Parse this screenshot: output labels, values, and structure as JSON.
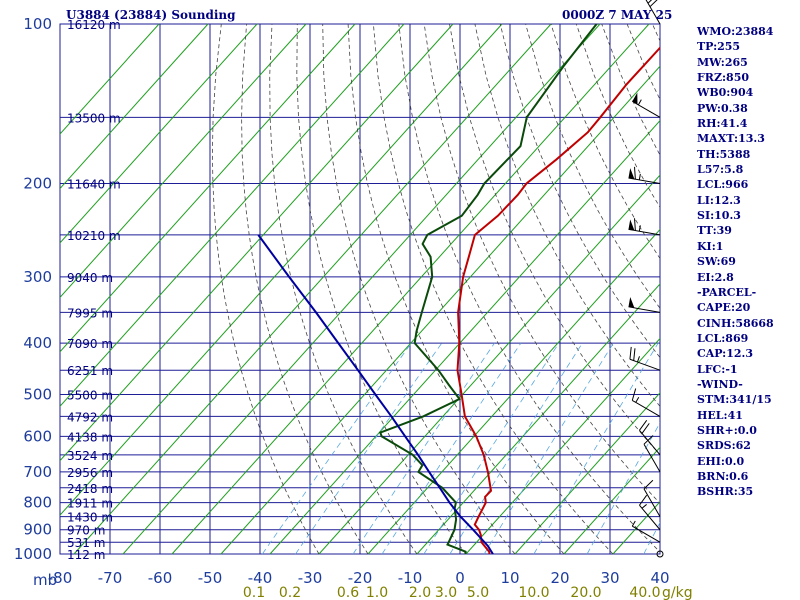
{
  "header": {
    "station": "U3884 (23884) Sounding",
    "time": "0000Z  7 MAY 25"
  },
  "indices": [
    "WMO:23884",
    "TP:255",
    "MW:265",
    "FRZ:850",
    "WB0:904",
    "PW:0.38",
    "RH:41.4",
    "MAXT:13.3",
    "TH:5388",
    "L57:5.8",
    "LCL:966",
    "LI:12.3",
    "SI:10.3",
    "TT:39",
    "KI:1",
    "SW:69",
    "EI:2.8",
    "-PARCEL-",
    "CAPE:20",
    "CINH:58668",
    "LCL:869",
    "CAP:12.3",
    "LFC:-1",
    "-WIND-",
    "STM:341/15",
    "HEL:41",
    "SHR+:0.0",
    "SRDS:62",
    "EHI:0.0",
    "BRN:0.6",
    "BSHR:35"
  ],
  "chart_data": {
    "type": "line",
    "title": "U3884 (23884) Sounding",
    "subtitle": "0000Z  7 MAY 25",
    "y_scale": "log-pressure",
    "ylim": [
      1000,
      100
    ],
    "xlim": [
      -80,
      40
    ],
    "y_unit_label": "mb",
    "pressure_ticks": [
      "100",
      "200",
      "300",
      "400",
      "500",
      "600",
      "700",
      "800",
      "900",
      "1000"
    ],
    "temperature_ticks": [
      "-80",
      "-70",
      "-60",
      "-50",
      "-40",
      "-30",
      "-20",
      "-10",
      "0",
      "10",
      "20",
      "30",
      "40"
    ],
    "mixing_ratio_ticks": [
      "0.1",
      "0.2",
      "0.6",
      "1.0",
      "2.0",
      "3.0",
      "5.0",
      "10.0",
      "20.0",
      "40.0"
    ],
    "mixing_ratio_unit": "g/kg",
    "height_labels": [
      {
        "p": 100,
        "label": "16120 m"
      },
      {
        "p": 150,
        "label": "13500 m"
      },
      {
        "p": 200,
        "label": "11640 m"
      },
      {
        "p": 250,
        "label": "10210 m"
      },
      {
        "p": 300,
        "label": "9040 m"
      },
      {
        "p": 350,
        "label": "7995 m"
      },
      {
        "p": 400,
        "label": "7090 m"
      },
      {
        "p": 450,
        "label": "6251 m"
      },
      {
        "p": 500,
        "label": "5500 m"
      },
      {
        "p": 550,
        "label": "4792 m"
      },
      {
        "p": 600,
        "label": "4138 m"
      },
      {
        "p": 650,
        "label": "3524 m"
      },
      {
        "p": 700,
        "label": "2956 m"
      },
      {
        "p": 750,
        "label": "2418 m"
      },
      {
        "p": 800,
        "label": "1911 m"
      },
      {
        "p": 850,
        "label": "1430 m"
      },
      {
        "p": 900,
        "label": "970 m"
      },
      {
        "p": 950,
        "label": "531 m"
      },
      {
        "p": 1000,
        "label": "112 m"
      }
    ],
    "series": [
      {
        "color": "#c00000",
        "points": [
          [
            1000,
            4.8
          ],
          [
            990,
            4.3
          ],
          [
            950,
            1.0
          ],
          [
            920,
            -0.5
          ],
          [
            900,
            -1.8
          ],
          [
            880,
            -3.6
          ],
          [
            850,
            -4.3
          ],
          [
            800,
            -5.4
          ],
          [
            780,
            -6.6
          ],
          [
            760,
            -6.5
          ],
          [
            700,
            -10.6
          ],
          [
            650,
            -14.6
          ],
          [
            600,
            -19.5
          ],
          [
            550,
            -25.5
          ],
          [
            500,
            -30.2
          ],
          [
            450,
            -35.5
          ],
          [
            400,
            -40.1
          ],
          [
            350,
            -46.0
          ],
          [
            300,
            -51.5
          ],
          [
            275,
            -54.0
          ],
          [
            250,
            -56.8
          ],
          [
            230,
            -55.6
          ],
          [
            210,
            -55.4
          ],
          [
            200,
            -55.7
          ],
          [
            180,
            -54.0
          ],
          [
            160,
            -52.6
          ],
          [
            150,
            -52.8
          ],
          [
            130,
            -53.5
          ],
          [
            100,
            -53.3
          ]
        ]
      },
      {
        "color": "#0a4a0a",
        "points": [
          [
            1000,
            -0.1
          ],
          [
            990,
            -0.5
          ],
          [
            960,
            -5.5
          ],
          [
            950,
            -5.7
          ],
          [
            900,
            -6.8
          ],
          [
            860,
            -8.4
          ],
          [
            820,
            -10.7
          ],
          [
            800,
            -11.5
          ],
          [
            750,
            -17.0
          ],
          [
            700,
            -24.8
          ],
          [
            680,
            -25.2
          ],
          [
            650,
            -29.1
          ],
          [
            600,
            -38.8
          ],
          [
            590,
            -39.8
          ],
          [
            550,
            -34.0
          ],
          [
            510,
            -29.8
          ],
          [
            480,
            -34.5
          ],
          [
            450,
            -39.4
          ],
          [
            400,
            -49.2
          ],
          [
            380,
            -51.0
          ],
          [
            350,
            -53.4
          ],
          [
            300,
            -57.8
          ],
          [
            275,
            -61.8
          ],
          [
            260,
            -65.8
          ],
          [
            250,
            -66.5
          ],
          [
            230,
            -63.0
          ],
          [
            210,
            -63.6
          ],
          [
            200,
            -64.3
          ],
          [
            170,
            -63.8
          ],
          [
            150,
            -67.8
          ],
          [
            120,
            -69.7
          ],
          [
            100,
            -70.7
          ]
        ]
      },
      {
        "color": "#0000a0",
        "points": [
          [
            1000,
            5.5
          ],
          [
            966,
            3.0
          ],
          [
            900,
            -3.0
          ],
          [
            850,
            -8.0
          ],
          [
            800,
            -12.8
          ],
          [
            750,
            -17.5
          ],
          [
            700,
            -22.6
          ],
          [
            650,
            -28.0
          ],
          [
            600,
            -34.0
          ],
          [
            550,
            -40.5
          ],
          [
            500,
            -47.8
          ],
          [
            450,
            -55.8
          ],
          [
            400,
            -64.8
          ],
          [
            350,
            -75.0
          ],
          [
            300,
            -87.0
          ],
          [
            250,
            -101.0
          ]
        ]
      }
    ],
    "wind_barbs": [
      {
        "p": 100,
        "dir": 330,
        "spd": 40
      },
      {
        "p": 150,
        "dir": 300,
        "spd": 55
      },
      {
        "p": 200,
        "dir": 280,
        "spd": 65
      },
      {
        "p": 250,
        "dir": 280,
        "spd": 65
      },
      {
        "p": 350,
        "dir": 280,
        "spd": 50
      },
      {
        "p": 450,
        "dir": 290,
        "spd": 25
      },
      {
        "p": 550,
        "dir": 300,
        "spd": 15
      },
      {
        "p": 650,
        "dir": 320,
        "spd": 20
      },
      {
        "p": 700,
        "dir": 330,
        "spd": 10
      },
      {
        "p": 850,
        "dir": 330,
        "spd": 10
      },
      {
        "p": 900,
        "dir": 320,
        "spd": 15
      },
      {
        "p": 950,
        "dir": 300,
        "spd": 5
      },
      {
        "p": 1000,
        "dir": 0,
        "spd": 0
      }
    ],
    "grid": true,
    "colors": {
      "frame": "#1e1e96",
      "dry_adiabat": "#1ea01e",
      "moist_adiabat": "#444444",
      "mixing_ratio": "#5aa8e0",
      "labels": "#1e3c9c"
    }
  }
}
